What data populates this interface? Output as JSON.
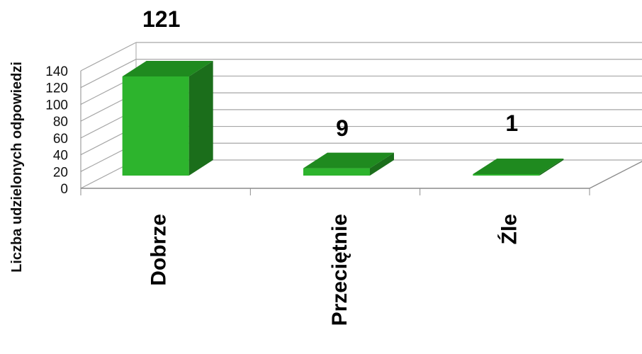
{
  "chart_data": {
    "type": "bar",
    "style": "3d-column",
    "categories": [
      "Dobrze",
      "Przeciętnie",
      "Źle"
    ],
    "values": [
      121,
      9,
      1
    ],
    "data_labels": [
      "121",
      "9",
      "1"
    ],
    "ylabel": "Liczba udzielonych odpowiedzi",
    "xlabel": "",
    "ylim": [
      0,
      140
    ],
    "yticks": [
      "0",
      "20",
      "40",
      "60",
      "80",
      "100",
      "120",
      "140"
    ],
    "grid": true,
    "legend": "none",
    "colors": {
      "bar_front": "#2db42d",
      "bar_side": "#1b6e1b",
      "bar_top": "#1f8a1f",
      "grid": "#a6a6a6",
      "axis": "#8c8c8c"
    }
  }
}
